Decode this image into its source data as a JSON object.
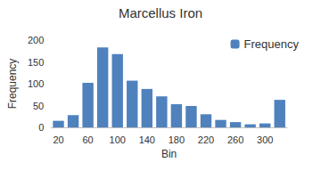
{
  "chart_data": {
    "type": "bar",
    "title": "Marcellus Iron",
    "x_label": "Bin",
    "y_label": "Frequency",
    "categories": [
      "20",
      null,
      "60",
      null,
      "100",
      null,
      "140",
      null,
      "180",
      null,
      "220",
      null,
      "260",
      null,
      "300",
      null
    ],
    "series": [
      {
        "name": "Frequency",
        "color": "#4f81bd",
        "values": [
          15,
          28,
          102,
          183,
          168,
          107,
          88,
          71,
          53,
          49,
          30,
          17,
          12,
          7,
          9,
          63
        ]
      }
    ],
    "ylim": [
      0,
      200
    ],
    "yticks": [
      0,
      50,
      100,
      150,
      200
    ],
    "grid": false,
    "legend": "upper right"
  }
}
